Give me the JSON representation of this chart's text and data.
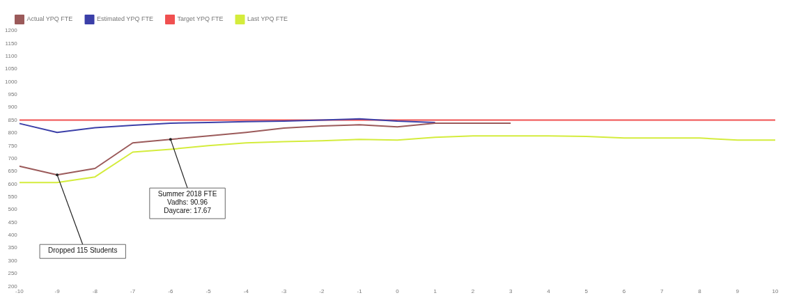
{
  "chart_data": {
    "type": "line",
    "x": [
      -10,
      -9,
      -8,
      -7,
      -6,
      -5,
      -4,
      -3,
      -2,
      -1,
      0,
      1,
      2,
      3,
      4,
      5,
      6,
      7,
      8,
      9,
      10
    ],
    "series": [
      {
        "name": "Actual YPQ FTE",
        "color": "#9b5a5a",
        "values": [
          670,
          636,
          661,
          761,
          775,
          788,
          802,
          819,
          827,
          832,
          824,
          838,
          838,
          838,
          null,
          null,
          null,
          null,
          null,
          null,
          null
        ]
      },
      {
        "name": "Estimated YPQ FTE",
        "color": "#3b3fa8",
        "values": [
          837,
          802,
          820,
          830,
          838,
          841,
          844,
          846,
          850,
          855,
          846,
          841,
          null,
          null,
          null,
          null,
          null,
          null,
          null,
          null,
          null
        ]
      },
      {
        "name": "Target YPQ FTE",
        "color": "#f05050",
        "values": [
          850,
          850,
          850,
          850,
          850,
          850,
          850,
          850,
          850,
          850,
          850,
          850,
          850,
          850,
          850,
          850,
          850,
          850,
          850,
          850,
          850
        ]
      },
      {
        "name": "Last YPQ FTE",
        "color": "#d4ec3c",
        "values": [
          606,
          606,
          628,
          725,
          736,
          750,
          761,
          766,
          769,
          775,
          772,
          783,
          788,
          788,
          788,
          786,
          780,
          780,
          780,
          772,
          772
        ]
      }
    ],
    "xlim": [
      -10,
      10
    ],
    "xticks": [
      -10,
      -9,
      -8,
      -7,
      -6,
      -5,
      -4,
      -3,
      -2,
      -1,
      0,
      1,
      2,
      3,
      4,
      5,
      6,
      7,
      8,
      9,
      10
    ],
    "ylim": [
      200,
      1200
    ],
    "yticks": [
      200,
      250,
      300,
      350,
      400,
      450,
      500,
      550,
      600,
      650,
      700,
      750,
      800,
      850,
      900,
      950,
      1000,
      1050,
      1100,
      1150,
      1200
    ],
    "annotations": [
      {
        "text": "Dropped 115 Students",
        "x": -9,
        "y": 636
      },
      {
        "text": "Summer 2018 FTE\nVadhs: 90.96\nDaycare: 17.67",
        "x": -6,
        "y": 775
      }
    ],
    "legend": "top left",
    "grid": false,
    "marker": "none",
    "line_style": "solid"
  }
}
